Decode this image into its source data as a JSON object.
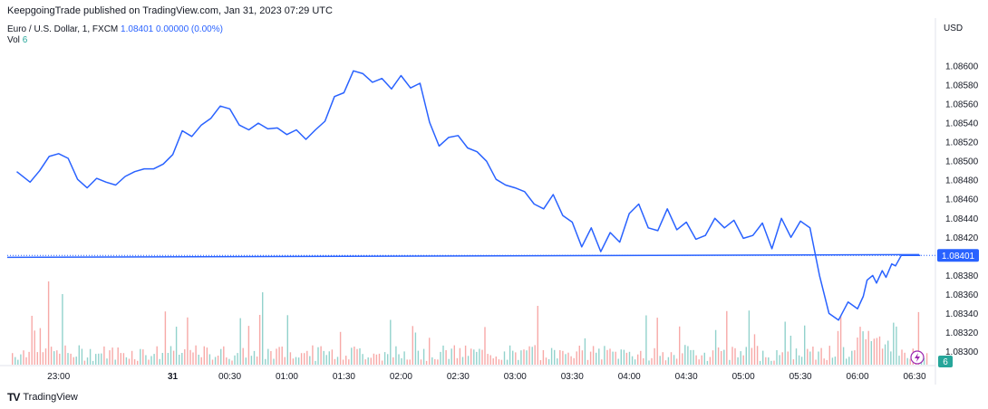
{
  "header": {
    "publisher_line": "KeepgoingTrade published on TradingView.com, Jan 31, 2023 07:29 UTC"
  },
  "legend": {
    "symbol": "Euro / U.S. Dollar, 1, FXCM",
    "last": "1.08401",
    "change": "0.00000 (0.00%)",
    "vol_label": "Vol",
    "vol_value": "6"
  },
  "footer": {
    "brand": "TradingView"
  },
  "colors": {
    "line": "#2962ff",
    "up": "#26a69a",
    "down": "#ef5350",
    "axis_text": "#131722"
  },
  "chart_data": {
    "type": "line",
    "y_axis_unit": "USD",
    "ylim": [
      1.0829,
      1.0862
    ],
    "y_ticks": [
      "1.08600",
      "1.08580",
      "1.08560",
      "1.08540",
      "1.08520",
      "1.08500",
      "1.08480",
      "1.08460",
      "1.08440",
      "1.08420",
      "1.08400",
      "1.08380",
      "1.08360",
      "1.08340",
      "1.08320",
      "1.08300"
    ],
    "x_ticks": [
      "23:00",
      "31",
      "00:30",
      "01:00",
      "01:30",
      "02:00",
      "02:30",
      "03:00",
      "03:30",
      "04:00",
      "04:30",
      "05:00",
      "05:30",
      "06:00",
      "06:30"
    ],
    "last_price_label": "1.08401",
    "last_volume_label": "6",
    "horizontal_level": 1.084,
    "series": [
      {
        "x": [
          "22:38",
          "22:45",
          "22:50",
          "22:55",
          "23:00",
          "23:05",
          "23:10",
          "23:15",
          "23:20",
          "23:25",
          "23:30",
          "23:35",
          "23:40",
          "23:45",
          "23:50",
          "23:55",
          "00:00",
          "00:05",
          "00:10",
          "00:15",
          "00:20",
          "00:25",
          "00:30",
          "00:35",
          "00:40",
          "00:45",
          "00:50",
          "00:55",
          "01:00",
          "01:05",
          "01:10",
          "01:15",
          "01:20",
          "01:25",
          "01:30",
          "01:35",
          "01:40",
          "01:45",
          "01:50",
          "01:55",
          "02:00",
          "02:05",
          "02:10",
          "02:15",
          "02:20",
          "02:25",
          "02:30",
          "02:35",
          "02:40",
          "02:45",
          "02:50",
          "02:55",
          "03:00",
          "03:05",
          "03:10",
          "03:15",
          "03:20",
          "03:25",
          "03:30",
          "03:35",
          "03:40",
          "03:45",
          "03:50",
          "03:55",
          "04:00",
          "04:05",
          "04:10",
          "04:15",
          "04:20",
          "04:25",
          "04:30",
          "04:35",
          "04:40",
          "04:45",
          "04:50",
          "04:55",
          "05:00",
          "05:05",
          "05:10",
          "05:15",
          "05:20",
          "05:25",
          "05:30",
          "05:35",
          "05:40",
          "05:45",
          "05:50",
          "05:55",
          "06:00",
          "06:03",
          "06:05",
          "06:08",
          "06:10",
          "06:13",
          "06:15",
          "06:18",
          "06:20",
          "06:23",
          "06:25",
          "06:28",
          "06:30",
          "06:33"
        ],
        "values": [
          1.08489,
          1.08478,
          1.0849,
          1.08505,
          1.08508,
          1.08503,
          1.08481,
          1.08472,
          1.08482,
          1.08478,
          1.08475,
          1.08484,
          1.08489,
          1.08492,
          1.08492,
          1.08497,
          1.08507,
          1.08532,
          1.08526,
          1.08538,
          1.08545,
          1.08558,
          1.08555,
          1.08538,
          1.08533,
          1.0854,
          1.08534,
          1.08535,
          1.08528,
          1.08533,
          1.08523,
          1.08533,
          1.08542,
          1.08568,
          1.08572,
          1.08595,
          1.08592,
          1.08583,
          1.08587,
          1.08576,
          1.0859,
          1.08577,
          1.08582,
          1.08541,
          1.08516,
          1.08525,
          1.08527,
          1.08514,
          1.0851,
          1.085,
          1.08481,
          1.08475,
          1.08472,
          1.08468,
          1.08455,
          1.0845,
          1.08465,
          1.08443,
          1.08436,
          1.0841,
          1.0843,
          1.08405,
          1.08425,
          1.08415,
          1.08445,
          1.08455,
          1.0843,
          1.08427,
          1.0845,
          1.08428,
          1.08436,
          1.08418,
          1.08422,
          1.0844,
          1.0843,
          1.08438,
          1.08419,
          1.08422,
          1.08435,
          1.08408,
          1.0844,
          1.0842,
          1.08437,
          1.0843,
          1.0838,
          1.0834,
          1.08333,
          1.08352,
          1.08345,
          1.08358,
          1.08375,
          1.0838,
          1.08372,
          1.08385,
          1.08378,
          1.08392,
          1.0839,
          1.08401,
          1.08401,
          1.08401,
          1.08401,
          1.08401
        ]
      }
    ]
  }
}
